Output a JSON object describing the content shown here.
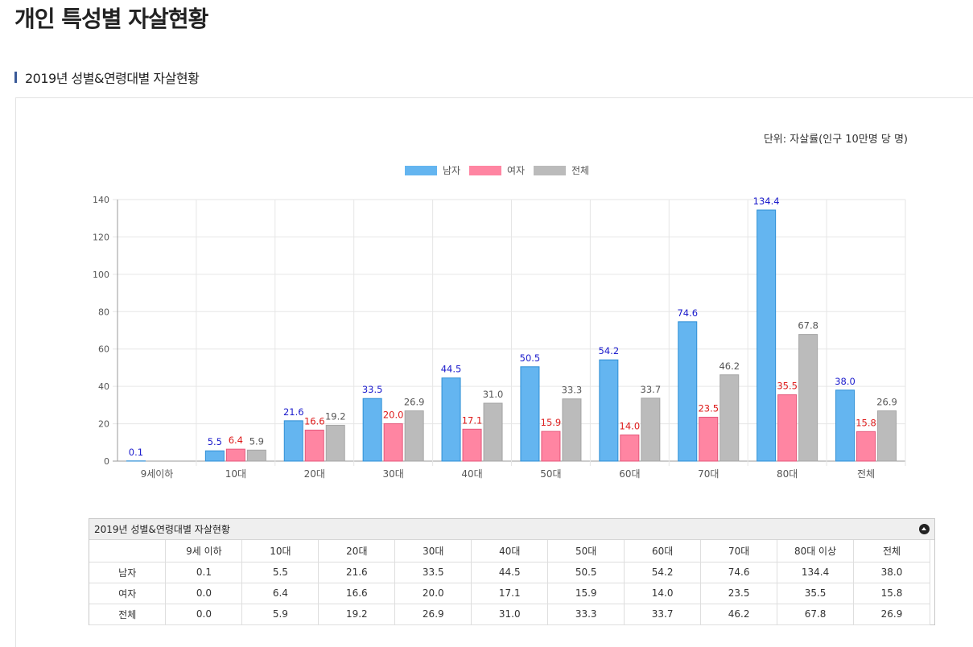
{
  "page": {
    "title": "개인 특성별 자살현황",
    "section_title": "2019년 성별&연령대별 자살현황",
    "unit": "단위: 자살률(인구 10만명 당 명)"
  },
  "colors": {
    "male": "#64b5f0",
    "female": "#ff85a2",
    "total": "#bbbbbb",
    "male_label": "#1a1acc",
    "female_label": "#dd1a1a",
    "total_label": "#555555"
  },
  "chart_data": {
    "type": "bar",
    "title": "",
    "xlabel": "",
    "ylabel": "",
    "ylim": [
      0,
      140
    ],
    "yticks": [
      0,
      20,
      40,
      60,
      80,
      100,
      120,
      140
    ],
    "categories": [
      "9세이하",
      "10대",
      "20대",
      "30대",
      "40대",
      "50대",
      "60대",
      "70대",
      "80대",
      "전체"
    ],
    "series": [
      {
        "name": "남자",
        "key": "male",
        "values": [
          0.1,
          5.5,
          21.6,
          33.5,
          44.5,
          50.5,
          54.2,
          74.6,
          134.4,
          38.0
        ],
        "labels": [
          "0.1",
          "5.5",
          "21.6",
          "33.5",
          "44.5",
          "50.5",
          "54.2",
          "74.6",
          "134.4",
          "38.0"
        ]
      },
      {
        "name": "여자",
        "key": "female",
        "values": [
          0.0,
          6.4,
          16.6,
          20.0,
          17.1,
          15.9,
          14.0,
          23.5,
          35.5,
          15.8
        ],
        "labels": [
          "",
          "6.4",
          "16.6",
          "20.0",
          "17.1",
          "15.9",
          "14.0",
          "23.5",
          "35.5",
          "15.8"
        ]
      },
      {
        "name": "전체",
        "key": "total",
        "values": [
          0.0,
          5.9,
          19.2,
          26.9,
          31.0,
          33.3,
          33.7,
          46.2,
          67.8,
          26.9
        ],
        "labels": [
          "",
          "5.9",
          "19.2",
          "26.9",
          "31.0",
          "33.3",
          "33.7",
          "46.2",
          "67.8",
          "26.9"
        ]
      }
    ],
    "legend": [
      "남자",
      "여자",
      "전체"
    ],
    "legend_position": "top-center",
    "grid": true
  },
  "table": {
    "caption": "2019년 성별&연령대별 자살현황",
    "columns": [
      "",
      "9세 이하",
      "10대",
      "20대",
      "30대",
      "40대",
      "50대",
      "60대",
      "70대",
      "80대 이상",
      "전체"
    ],
    "rows": [
      {
        "label": "남자",
        "values": [
          "0.1",
          "5.5",
          "21.6",
          "33.5",
          "44.5",
          "50.5",
          "54.2",
          "74.6",
          "134.4",
          "38.0"
        ]
      },
      {
        "label": "여자",
        "values": [
          "0.0",
          "6.4",
          "16.6",
          "20.0",
          "17.1",
          "15.9",
          "14.0",
          "23.5",
          "35.5",
          "15.8"
        ]
      },
      {
        "label": "전체",
        "values": [
          "0.0",
          "5.9",
          "19.2",
          "26.9",
          "31.0",
          "33.3",
          "33.7",
          "46.2",
          "67.8",
          "26.9"
        ]
      }
    ]
  }
}
